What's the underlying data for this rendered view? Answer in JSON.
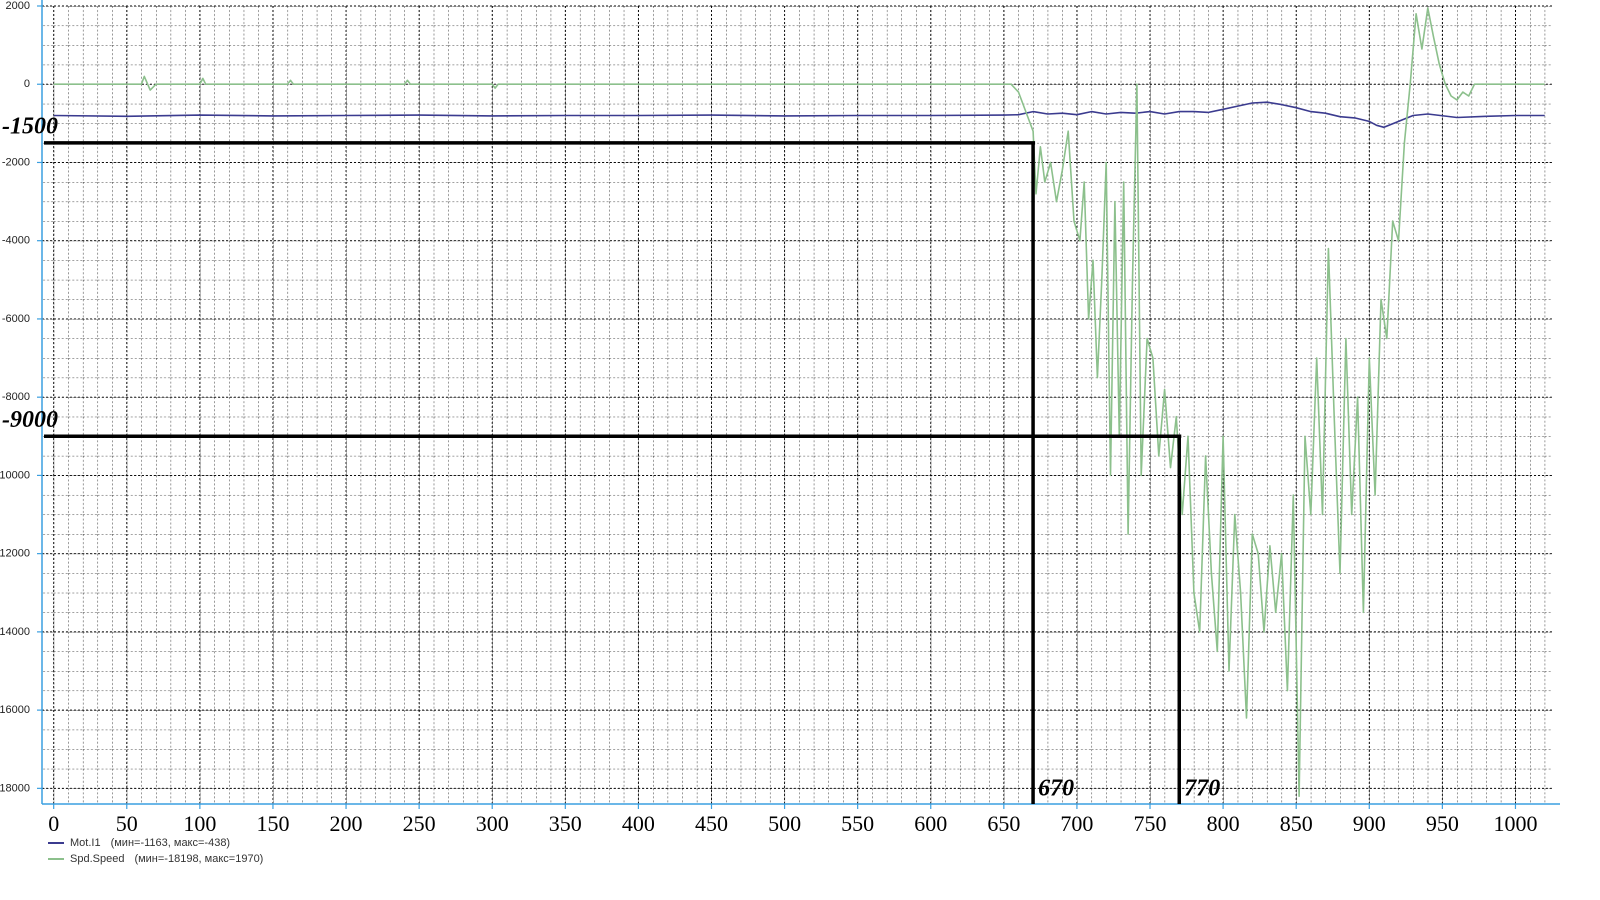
{
  "chart_data": {
    "type": "line",
    "xlim": [
      -8,
      1025
    ],
    "ylim": [
      -18400,
      2000
    ],
    "xticks": [
      0,
      50,
      100,
      150,
      200,
      250,
      300,
      350,
      400,
      450,
      500,
      550,
      600,
      650,
      700,
      750,
      800,
      850,
      900,
      950,
      1000
    ],
    "yticks": [
      2000,
      0,
      -2000,
      -4000,
      -6000,
      -8000,
      {
        "value": -10000,
        "label": "10000"
      },
      {
        "value": -12000,
        "label": "12000"
      },
      {
        "value": -14000,
        "label": "14000"
      },
      {
        "value": -16000,
        "label": "16000"
      },
      {
        "value": -18000,
        "label": "18000"
      }
    ],
    "grid": true,
    "series": [
      {
        "name": "Mot.I1",
        "legend_label": "(мин=-1163, макс=-438)",
        "color": "#3b3b8f",
        "x": [
          0,
          50,
          100,
          150,
          200,
          250,
          300,
          350,
          400,
          450,
          500,
          550,
          600,
          650,
          660,
          670,
          680,
          690,
          700,
          710,
          720,
          730,
          740,
          750,
          760,
          770,
          780,
          790,
          800,
          810,
          820,
          830,
          840,
          850,
          860,
          870,
          880,
          890,
          900,
          905,
          910,
          920,
          930,
          940,
          960,
          980,
          1000,
          1020
        ],
        "values": [
          -800,
          -820,
          -790,
          -810,
          -800,
          -790,
          -810,
          -800,
          -800,
          -790,
          -810,
          -800,
          -800,
          -790,
          -780,
          -700,
          -760,
          -740,
          -780,
          -700,
          -760,
          -720,
          -740,
          -700,
          -760,
          -700,
          -700,
          -720,
          -640,
          -560,
          -480,
          -460,
          -520,
          -600,
          -700,
          -740,
          -830,
          -860,
          -950,
          -1050,
          -1100,
          -950,
          -800,
          -760,
          -850,
          -820,
          -800,
          -800
        ]
      },
      {
        "name": "Spd.Speed",
        "legend_label": "(мин=-18198, макс=1970)",
        "color": "#8cc08c",
        "x": [
          0,
          40,
          60,
          62,
          66,
          70,
          100,
          102,
          104,
          150,
          160,
          162,
          164,
          240,
          242,
          244,
          300,
          302,
          304,
          400,
          500,
          600,
          650,
          655,
          660,
          665,
          668,
          670,
          672,
          675,
          678,
          682,
          686,
          690,
          694,
          698,
          702,
          705,
          708,
          711,
          714,
          717,
          720,
          723,
          726,
          729,
          732,
          735,
          738,
          741,
          744,
          748,
          752,
          756,
          760,
          764,
          768,
          772,
          776,
          780,
          784,
          788,
          792,
          796,
          800,
          804,
          808,
          812,
          816,
          820,
          824,
          828,
          832,
          836,
          840,
          844,
          848,
          852,
          856,
          860,
          864,
          868,
          872,
          876,
          880,
          884,
          888,
          892,
          896,
          900,
          904,
          908,
          912,
          916,
          920,
          924,
          928,
          932,
          936,
          940,
          944,
          948,
          952,
          956,
          960,
          964,
          968,
          972,
          980,
          1000,
          1020
        ],
        "values": [
          0,
          0,
          0,
          200,
          -150,
          0,
          0,
          150,
          0,
          0,
          0,
          100,
          0,
          0,
          100,
          0,
          0,
          -100,
          0,
          0,
          0,
          0,
          0,
          0,
          -200,
          -700,
          -1000,
          -1200,
          -2800,
          -1600,
          -2500,
          -2000,
          -3000,
          -2200,
          -1200,
          -3500,
          -4000,
          -2500,
          -6000,
          -4500,
          -7500,
          -5000,
          -2000,
          -10000,
          -3000,
          -9000,
          -2500,
          -11500,
          -5000,
          0,
          -10000,
          -6500,
          -7000,
          -9500,
          -7800,
          -9800,
          -8500,
          -11000,
          -9000,
          -13000,
          -14000,
          -9500,
          -12500,
          -14500,
          -9000,
          -15000,
          -11000,
          -13000,
          -16200,
          -11500,
          -12000,
          -14000,
          -11800,
          -13500,
          -12000,
          -15500,
          -10500,
          -18200,
          -9000,
          -11000,
          -7000,
          -11000,
          -4200,
          -8500,
          -12500,
          -6500,
          -11000,
          -8000,
          -13500,
          -7000,
          -10500,
          -5500,
          -6500,
          -3500,
          -4000,
          -1500,
          0,
          1800,
          900,
          1950,
          1200,
          500,
          0,
          -300,
          -400,
          -200,
          -300,
          0,
          0,
          0,
          0
        ]
      }
    ],
    "annotations": [
      {
        "x": 670,
        "y": -1500
      },
      {
        "x": 770,
        "y": -9000
      }
    ]
  }
}
